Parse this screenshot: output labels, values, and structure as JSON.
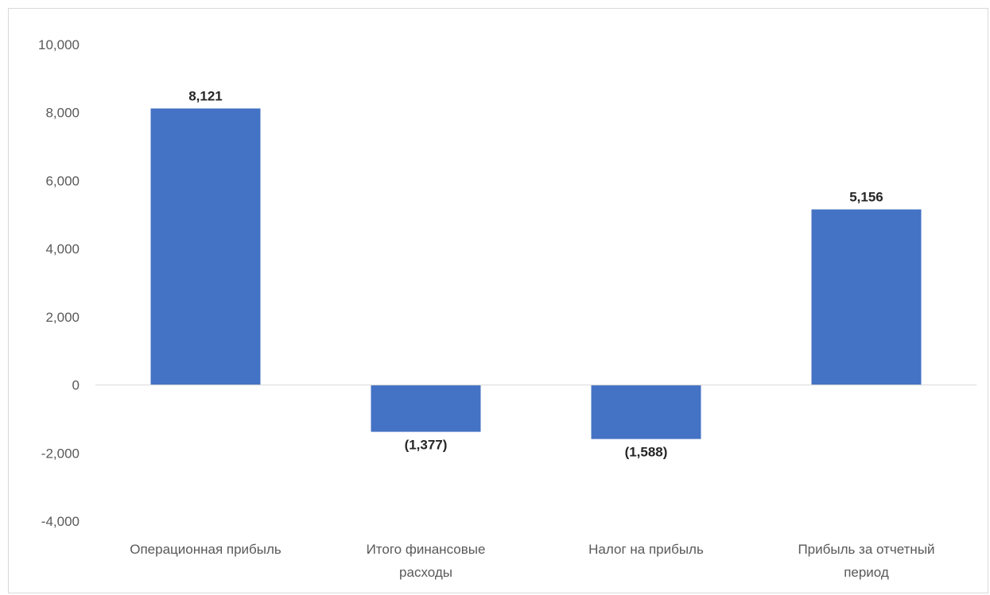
{
  "chart_data": {
    "type": "bar",
    "categories": [
      [
        "Операционная прибыль"
      ],
      [
        "Итого финансовые",
        "расходы"
      ],
      [
        "Налог на прибыль"
      ],
      [
        "Прибыль за отчетный",
        "период"
      ]
    ],
    "values": [
      8121,
      -1377,
      -1588,
      5156
    ],
    "data_labels": [
      "8,121",
      "(1,377)",
      "(1,588)",
      "5,156"
    ],
    "yticks": [
      10000,
      8000,
      6000,
      4000,
      2000,
      0,
      -2000,
      -4000
    ],
    "ytick_labels": [
      "10,000",
      "8,000",
      "6,000",
      "4,000",
      "2,000",
      "0",
      "-2,000",
      "-4,000"
    ],
    "ylim": [
      -4000,
      10000
    ],
    "grid": false,
    "legend": "none",
    "bar_color": "#4472c4",
    "axis_color": "#d9d9d9"
  }
}
